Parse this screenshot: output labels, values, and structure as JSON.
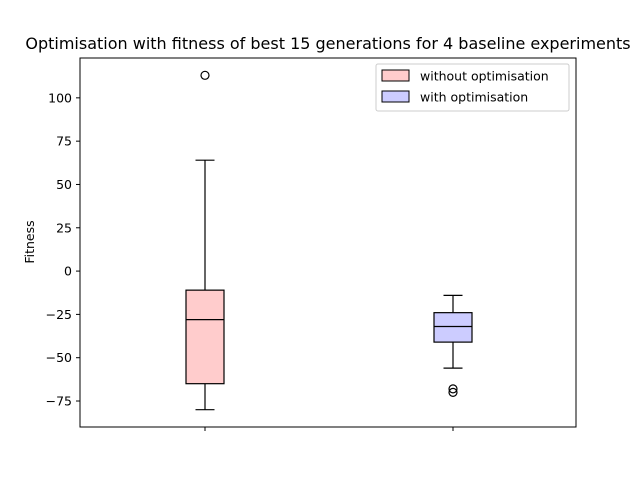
{
  "chart_data": {
    "type": "box",
    "title": "Optimisation with fitness of best 15 generations for 4 baseline experiments",
    "xlabel": "",
    "ylabel": "Fitness",
    "ylim": [
      -90,
      123
    ],
    "yticks": [
      -75,
      -50,
      -25,
      0,
      25,
      50,
      75,
      100
    ],
    "grid": false,
    "legend_position": "top-right",
    "series": [
      {
        "name": "without optimisation",
        "color": "#ffcccc",
        "whisker_low": -80,
        "q1": -65,
        "median": -28,
        "q3": -11,
        "whisker_high": 64,
        "outliers": [
          113
        ]
      },
      {
        "name": "with optimisation",
        "color": "#ccccff",
        "whisker_low": -56,
        "q1": -41,
        "median": -32,
        "q3": -24,
        "whisker_high": -14,
        "outliers": [
          -68,
          -70
        ]
      }
    ]
  }
}
